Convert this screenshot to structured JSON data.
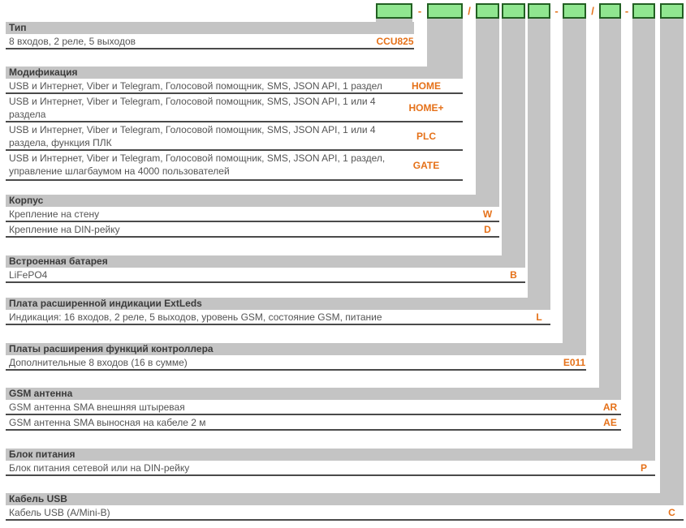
{
  "colors": {
    "code_orange": "#e57119",
    "box_green_fill": "#90e690",
    "box_green_border": "#226022",
    "connector_gray": "#c4c4c4"
  },
  "top_code": {
    "separators": [
      "-",
      "/",
      "-",
      "/",
      "-"
    ]
  },
  "sections": [
    {
      "title": "Тип",
      "rows": [
        {
          "label": "8 входов, 2 реле, 5 выходов",
          "code": "CCU825"
        }
      ]
    },
    {
      "title": "Модификация",
      "rows": [
        {
          "label": "USB и Интернет, Viber и Telegram, Голосовой помощник, SMS, JSON API, 1 раздел",
          "code": "HOME"
        },
        {
          "label": "USB и Интернет, Viber и Telegram, Голосовой помощник, SMS, JSON API, 1 или 4 раздела",
          "code": "HOME+"
        },
        {
          "label": "USB и Интернет, Viber и Telegram, Голосовой помощник, SMS, JSON API, 1 или 4 раздела, функция ПЛК",
          "code": "PLC"
        },
        {
          "label": "USB и Интернет, Viber и Telegram, Голосовой помощник, SMS, JSON API, 1 раздел, управление шлагбаумом на 4000 пользователей",
          "code": "GATE"
        }
      ]
    },
    {
      "title": "Корпус",
      "rows": [
        {
          "label": "Крепление на стену",
          "code": "W"
        },
        {
          "label": "Крепление на DIN-рейку",
          "code": "D"
        }
      ]
    },
    {
      "title": "Встроенная батарея",
      "rows": [
        {
          "label": "LiFePO4",
          "code": "B"
        }
      ]
    },
    {
      "title": "Плата расширенной индикации ExtLeds",
      "rows": [
        {
          "label": "Индикация: 16 входов, 2 реле, 5 выходов, уровень GSM, состояние GSM, питание",
          "code": "L"
        }
      ]
    },
    {
      "title": "Платы расширения функций контроллера",
      "rows": [
        {
          "label": "Дополнительные 8 входов (16 в сумме)",
          "code": "E011"
        }
      ]
    },
    {
      "title": "GSM антенна",
      "rows": [
        {
          "label": "GSM антенна SMA внешняя штыревая",
          "code": "AR"
        },
        {
          "label": "GSM антенна SMA выносная на кабеле 2 м",
          "code": "AE"
        }
      ]
    },
    {
      "title": "Блок питания",
      "rows": [
        {
          "label": "Блок питания сетевой или на DIN-рейку",
          "code": "P"
        }
      ]
    },
    {
      "title": "Кабель USB",
      "rows": [
        {
          "label": "Кабель USB (A/Mini-B)",
          "code": "C"
        }
      ]
    }
  ]
}
